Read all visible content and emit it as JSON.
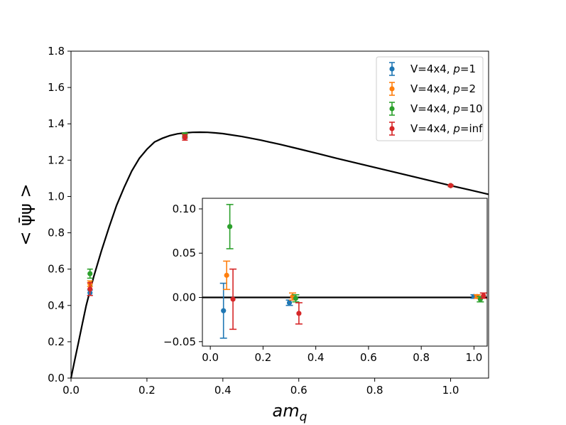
{
  "chart_data": [
    {
      "name": "main",
      "type": "scatter",
      "xlabel_base": "am",
      "xlabel_sub": "q",
      "ylabel": "< ψ̄ψ >",
      "xlim": [
        0.0,
        1.1
      ],
      "ylim": [
        0.0,
        1.8
      ],
      "xticks": [
        0.0,
        0.2,
        0.4,
        0.6,
        0.8,
        1.0
      ],
      "xtick_labels": [
        "0.0",
        "0.2",
        "0.4",
        "0.6",
        "0.8",
        "1.0"
      ],
      "yticks": [
        0.0,
        0.2,
        0.4,
        0.6,
        0.8,
        1.0,
        1.2,
        1.4,
        1.6,
        1.8
      ],
      "ytick_labels": [
        "0.0",
        "0.2",
        "0.4",
        "0.6",
        "0.8",
        "1.0",
        "1.2",
        "1.4",
        "1.6",
        "1.8"
      ],
      "curve": {
        "color": "#000000",
        "x": [
          0.0,
          0.01,
          0.02,
          0.03,
          0.04,
          0.05,
          0.06,
          0.08,
          0.1,
          0.12,
          0.14,
          0.16,
          0.18,
          0.2,
          0.22,
          0.24,
          0.26,
          0.28,
          0.3,
          0.32,
          0.34,
          0.36,
          0.38,
          0.4,
          0.45,
          0.5,
          0.55,
          0.6,
          0.65,
          0.7,
          0.75,
          0.8,
          0.85,
          0.9,
          0.95,
          1.0,
          1.05,
          1.1
        ],
        "y": [
          0.0,
          0.1,
          0.2,
          0.3,
          0.4,
          0.48,
          0.56,
          0.7,
          0.83,
          0.95,
          1.05,
          1.14,
          1.21,
          1.26,
          1.3,
          1.32,
          1.335,
          1.345,
          1.35,
          1.353,
          1.354,
          1.353,
          1.35,
          1.346,
          1.33,
          1.31,
          1.287,
          1.262,
          1.236,
          1.21,
          1.185,
          1.16,
          1.135,
          1.11,
          1.085,
          1.06,
          1.036,
          1.012
        ]
      },
      "series": [
        {
          "name": "V=4x4, ",
          "p_label": "p",
          "p_value": "=1",
          "color": "#1f77b4",
          "points": [
            {
              "x": 0.05,
              "y": 0.47,
              "err": 0.015
            },
            {
              "x": 0.3,
              "y": 1.33,
              "err": 0.01
            },
            {
              "x": 1.0,
              "y": 1.06,
              "err": 0.005
            }
          ]
        },
        {
          "name": "V=4x4, ",
          "p_label": "p",
          "p_value": "=2",
          "color": "#ff7f0e",
          "points": [
            {
              "x": 0.05,
              "y": 0.52,
              "err": 0.015
            },
            {
              "x": 0.3,
              "y": 1.335,
              "err": 0.01
            },
            {
              "x": 1.0,
              "y": 1.06,
              "err": 0.005
            }
          ]
        },
        {
          "name": "V=4x4, ",
          "p_label": "p",
          "p_value": "=10",
          "color": "#2ca02c",
          "points": [
            {
              "x": 0.05,
              "y": 0.575,
              "err": 0.025
            },
            {
              "x": 0.3,
              "y": 1.34,
              "err": 0.01
            },
            {
              "x": 1.0,
              "y": 1.06,
              "err": 0.005
            }
          ]
        },
        {
          "name": "V=4x4, ",
          "p_label": "p",
          "p_value": "=inf",
          "color": "#d62728",
          "points": [
            {
              "x": 0.05,
              "y": 0.49,
              "err": 0.035
            },
            {
              "x": 0.3,
              "y": 1.325,
              "err": 0.015
            },
            {
              "x": 1.0,
              "y": 1.06,
              "err": 0.005
            }
          ]
        }
      ],
      "legend": "top-right"
    },
    {
      "name": "inset",
      "type": "scatter",
      "xlim": [
        -0.03,
        1.05
      ],
      "ylim": [
        -0.055,
        0.112
      ],
      "xticks": [
        0.0,
        0.2,
        0.4,
        0.6,
        0.8,
        1.0
      ],
      "xtick_labels": [
        "0.0",
        "0.2",
        "0.4",
        "0.6",
        "0.8",
        "1.0"
      ],
      "yticks": [
        -0.05,
        0.0,
        0.05,
        0.1
      ],
      "ytick_labels": [
        "−0.05",
        "0.00",
        "0.05",
        "0.10"
      ],
      "hline": 0.0,
      "series": [
        {
          "color": "#1f77b4",
          "points": [
            {
              "x": 0.05,
              "y": -0.015,
              "err": 0.031
            },
            {
              "x": 0.3,
              "y": -0.006,
              "err": 0.003
            },
            {
              "x": 1.0,
              "y": 0.001,
              "err": 0.002
            }
          ]
        },
        {
          "color": "#ff7f0e",
          "points": [
            {
              "x": 0.062,
              "y": 0.025,
              "err": 0.016
            },
            {
              "x": 0.312,
              "y": 0.001,
              "err": 0.004
            },
            {
              "x": 1.012,
              "y": 0.001,
              "err": 0.002
            }
          ]
        },
        {
          "color": "#2ca02c",
          "points": [
            {
              "x": 0.074,
              "y": 0.08,
              "err": 0.025
            },
            {
              "x": 0.324,
              "y": -0.001,
              "err": 0.004
            },
            {
              "x": 1.024,
              "y": -0.002,
              "err": 0.003
            }
          ]
        },
        {
          "color": "#d62728",
          "points": [
            {
              "x": 0.086,
              "y": -0.002,
              "err": 0.034
            },
            {
              "x": 0.336,
              "y": -0.018,
              "err": 0.012
            },
            {
              "x": 1.036,
              "y": 0.002,
              "err": 0.003
            }
          ]
        }
      ]
    }
  ]
}
